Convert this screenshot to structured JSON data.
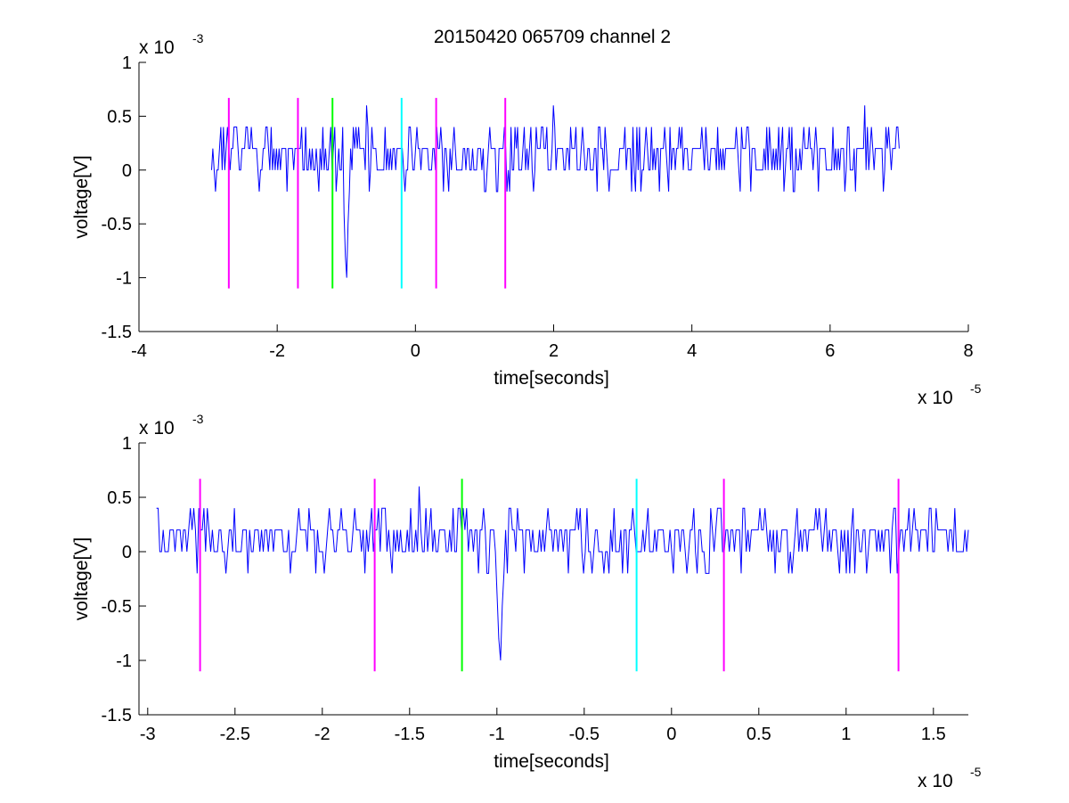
{
  "figure": {
    "title": "20150420 065709 channel 2"
  },
  "chart_data": [
    {
      "type": "line",
      "xlabel": "time[seconds]",
      "ylabel": "voltage[V]",
      "xlim": [
        -4,
        8
      ],
      "ylim": [
        -1.5,
        1
      ],
      "x_multiplier": "x 10",
      "x_exponent": "-5",
      "y_multiplier": "x 10",
      "y_exponent": "-3",
      "xticks": [
        "-4",
        "-2",
        "0",
        "2",
        "4",
        "6",
        "8"
      ],
      "yticks": [
        "-1.5",
        "-1",
        "-0.5",
        "0",
        "0.5",
        "1"
      ],
      "grid": false,
      "series": [
        {
          "color": "#0000ff",
          "x_start": -2.95,
          "x_end": 7.0,
          "baseline_levels": [
            0,
            0.2,
            0.4,
            -0.2
          ],
          "peaks": [
            {
              "x": -1.0,
              "y": -1.0
            },
            {
              "x": 6.5,
              "y": 0.6
            },
            {
              "x": -0.7,
              "y": 0.6
            },
            {
              "x": 2.0,
              "y": 0.6
            }
          ]
        }
      ],
      "markers": [
        {
          "x": -2.7,
          "y_top": 0.67,
          "y_bottom": -1.1,
          "color": "#ff00ff"
        },
        {
          "x": -1.7,
          "y_top": 0.67,
          "y_bottom": -1.1,
          "color": "#ff00ff"
        },
        {
          "x": -1.2,
          "y_top": 0.67,
          "y_bottom": -1.1,
          "color": "#00ff00"
        },
        {
          "x": -0.2,
          "y_top": 0.67,
          "y_bottom": -1.1,
          "color": "#00ffff"
        },
        {
          "x": 0.3,
          "y_top": 0.67,
          "y_bottom": -1.1,
          "color": "#ff00ff"
        },
        {
          "x": 1.3,
          "y_top": 0.67,
          "y_bottom": -1.1,
          "color": "#ff00ff"
        }
      ]
    },
    {
      "type": "line",
      "xlabel": "time[seconds]",
      "ylabel": "voltage[V]",
      "xlim": [
        -3.05,
        1.7
      ],
      "ylim": [
        -1.5,
        1
      ],
      "x_multiplier": "x 10",
      "x_exponent": "-5",
      "y_multiplier": "x 10",
      "y_exponent": "-3",
      "xticks": [
        "-3",
        "-2.5",
        "-2",
        "-1.5",
        "-1",
        "-0.5",
        "0",
        "0.5",
        "1",
        "1.5"
      ],
      "yticks": [
        "-1.5",
        "-1",
        "-0.5",
        "0",
        "0.5",
        "1"
      ],
      "grid": false,
      "series": [
        {
          "color": "#0000ff",
          "x_start": -2.95,
          "x_end": 1.7,
          "baseline_levels": [
            0,
            0.2,
            0.4,
            -0.2
          ],
          "peaks": [
            {
              "x": -0.98,
              "y": -1.0
            },
            {
              "x": -1.45,
              "y": 0.6
            }
          ]
        }
      ],
      "markers": [
        {
          "x": -2.7,
          "y_top": 0.67,
          "y_bottom": -1.1,
          "color": "#ff00ff"
        },
        {
          "x": -1.7,
          "y_top": 0.67,
          "y_bottom": -1.1,
          "color": "#ff00ff"
        },
        {
          "x": -1.2,
          "y_top": 0.67,
          "y_bottom": -1.1,
          "color": "#00ff00"
        },
        {
          "x": -0.2,
          "y_top": 0.67,
          "y_bottom": -1.1,
          "color": "#00ffff"
        },
        {
          "x": 0.3,
          "y_top": 0.67,
          "y_bottom": -1.1,
          "color": "#ff00ff"
        },
        {
          "x": 1.3,
          "y_top": 0.67,
          "y_bottom": -1.1,
          "color": "#ff00ff"
        }
      ]
    }
  ]
}
